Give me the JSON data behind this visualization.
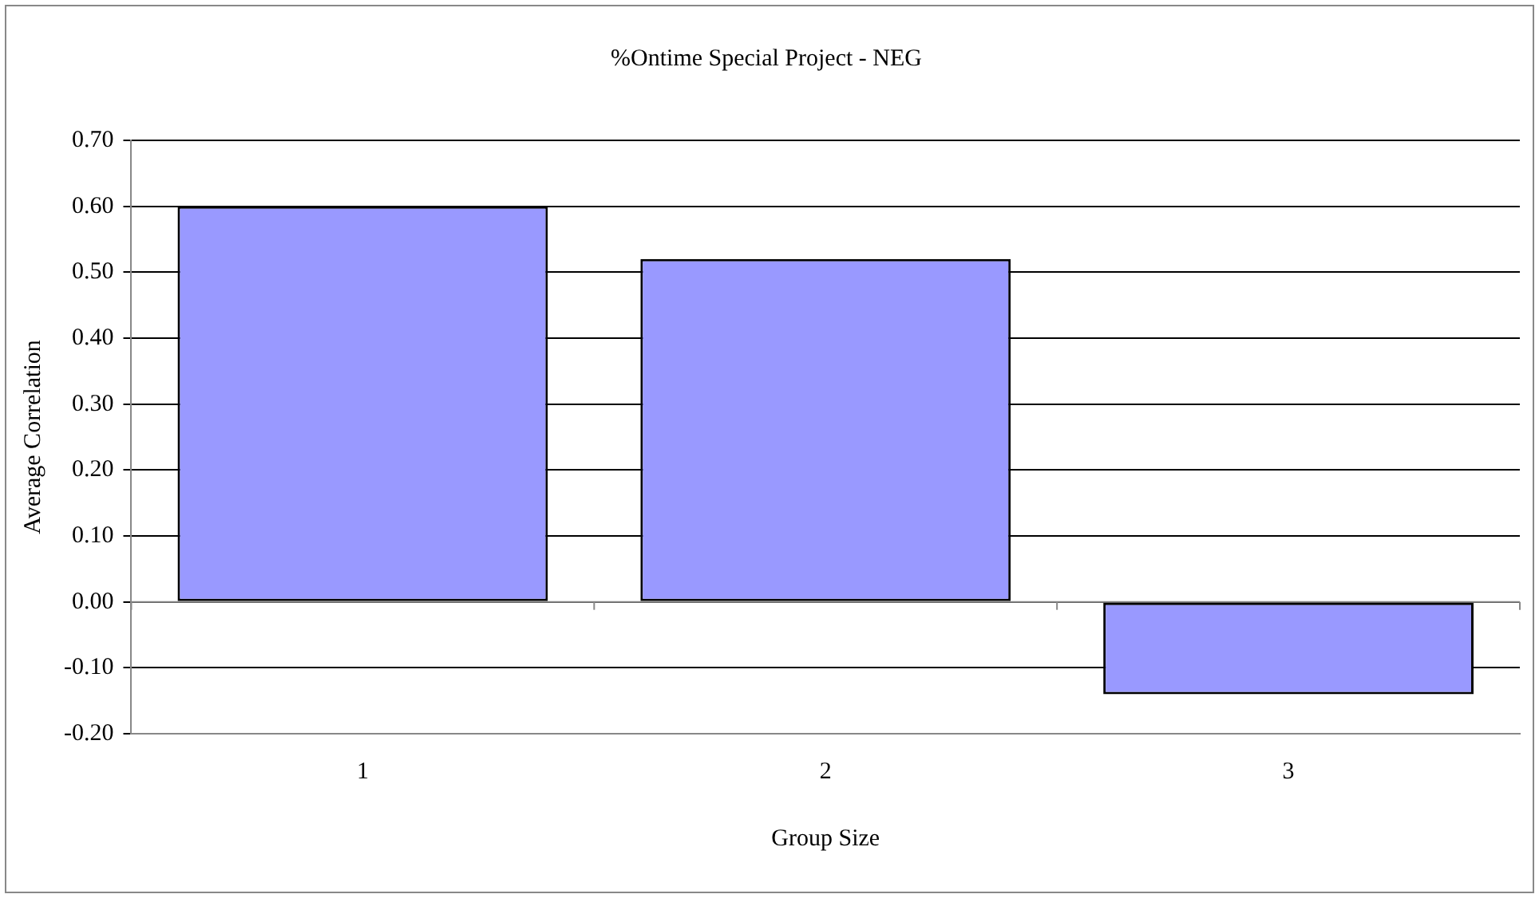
{
  "chart_data": {
    "type": "bar",
    "title": "%Ontime Special Project - NEG",
    "xlabel": "Group Size",
    "ylabel": "Average Correlation",
    "categories": [
      "1",
      "2",
      "3"
    ],
    "values": [
      0.6,
      0.52,
      -0.14
    ],
    "color": "#9999ff",
    "ylim": [
      -0.2,
      0.7
    ],
    "yticks": [
      {
        "value": -0.2,
        "label": "-0.20"
      },
      {
        "value": -0.1,
        "label": "-0.10"
      },
      {
        "value": 0,
        "label": "0.00"
      },
      {
        "value": 0.1,
        "label": "0.10"
      },
      {
        "value": 0.2,
        "label": "0.20"
      },
      {
        "value": 0.3,
        "label": "0.30"
      },
      {
        "value": 0.4,
        "label": "0.40"
      },
      {
        "value": 0.5,
        "label": "0.50"
      },
      {
        "value": 0.6,
        "label": "0.60"
      },
      {
        "value": 0.7,
        "label": "0.70"
      }
    ],
    "grid": "y"
  }
}
